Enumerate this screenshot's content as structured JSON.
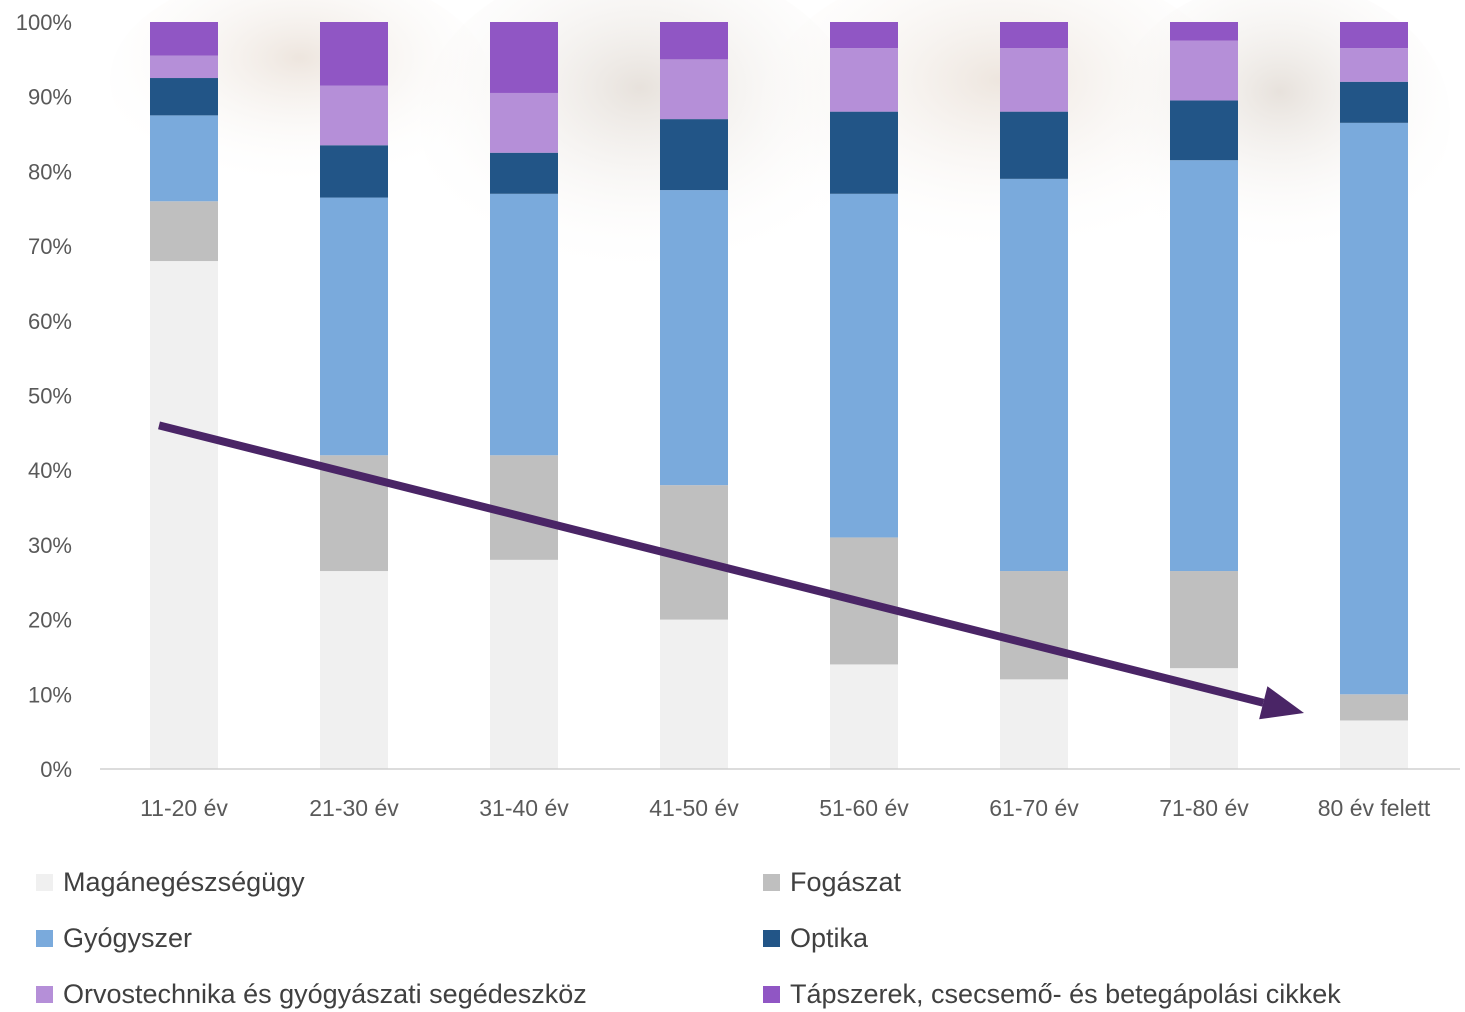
{
  "chart_data": {
    "type": "bar",
    "stacked": true,
    "ylim": [
      0,
      100
    ],
    "yticks": [
      "0%",
      "10%",
      "20%",
      "30%",
      "40%",
      "50%",
      "60%",
      "70%",
      "80%",
      "90%",
      "100%"
    ],
    "categories": [
      "11-20 év",
      "21-30 év",
      "31-40 év",
      "41-50 év",
      "51-60 év",
      "61-70 év",
      "71-80 év",
      "80 év felett"
    ],
    "series": [
      {
        "name": "Magánegészségügy",
        "color": "#f0f0f0",
        "values": [
          68,
          26.5,
          28,
          20,
          14,
          12,
          13.5,
          6.5
        ]
      },
      {
        "name": "Fogászat",
        "color": "#bfbfbf",
        "values": [
          8,
          15.5,
          14,
          18,
          17,
          14.5,
          13,
          3.5
        ]
      },
      {
        "name": "Gyógyszer",
        "color": "#7aaadc",
        "values": [
          11.5,
          34.5,
          35,
          39.5,
          46,
          52.5,
          55,
          76.5
        ]
      },
      {
        "name": "Optika",
        "color": "#225587",
        "values": [
          5,
          7,
          5.5,
          9.5,
          11,
          9,
          8,
          5.5
        ]
      },
      {
        "name": "Orvostechnika és gyógyászati segédeszköz",
        "color": "#b58fd8",
        "values": [
          3,
          8,
          8,
          8,
          8.5,
          8.5,
          8,
          4.5
        ]
      },
      {
        "name": "Tápszerek, csecsemő- és betegápolási cikkek",
        "color": "#9056c4",
        "values": [
          4.5,
          8.5,
          9.5,
          5,
          3.5,
          3.5,
          2.5,
          3.5
        ]
      }
    ],
    "grid": false,
    "legend_position": "bottom",
    "annotations": [
      {
        "type": "arrow",
        "color": "#4a2566",
        "from": {
          "category": "11-20 év",
          "y": 46
        },
        "to": {
          "category": "80 év felett",
          "y": 7.5
        }
      }
    ]
  }
}
